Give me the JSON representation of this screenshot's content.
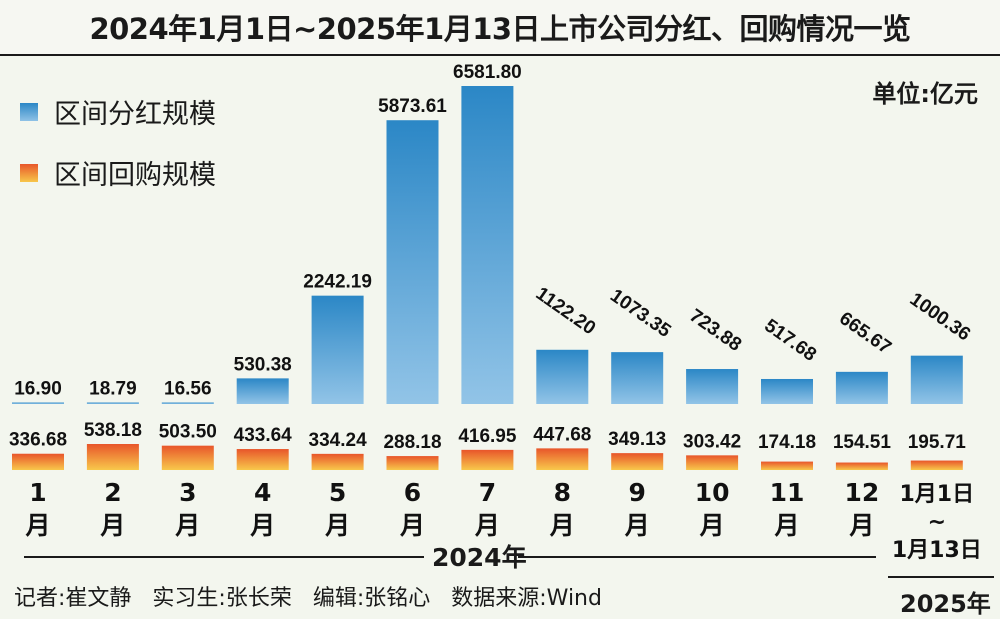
{
  "title": "2024年1月1日~2025年1月13日上市公司分红、回购情况一览",
  "unit_label": "单位:亿元",
  "legend": [
    {
      "label": "区间分红规模",
      "color": "#2b87c6"
    },
    {
      "label": "区间回购规模",
      "color": "#f08a2e"
    }
  ],
  "year_2024": "2024年",
  "year_2025": "2025年",
  "footer": {
    "reporter": "记者:崔文静",
    "intern": "实习生:张长荣",
    "editor": "编辑:张铭心",
    "source": "数据来源:Wind"
  },
  "chart_data": {
    "type": "bar",
    "title": "2024年1月1日~2025年1月13日上市公司分红、回购情况一览",
    "unit": "单位:亿元",
    "categories": [
      "1月",
      "2月",
      "3月",
      "4月",
      "5月",
      "6月",
      "7月",
      "8月",
      "9月",
      "10月",
      "11月",
      "12月",
      "1月1日~1月13日"
    ],
    "category_labels": [
      [
        "1",
        "月"
      ],
      [
        "2",
        "月"
      ],
      [
        "3",
        "月"
      ],
      [
        "4",
        "月"
      ],
      [
        "5",
        "月"
      ],
      [
        "6",
        "月"
      ],
      [
        "7",
        "月"
      ],
      [
        "8",
        "月"
      ],
      [
        "9",
        "月"
      ],
      [
        "10",
        "月"
      ],
      [
        "11",
        "月"
      ],
      [
        "12",
        "月"
      ],
      [
        "1月1日",
        "~",
        "1月13日"
      ]
    ],
    "series": [
      {
        "name": "区间分红规模",
        "values": [
          16.9,
          18.79,
          16.56,
          530.38,
          2242.19,
          5873.61,
          6581.8,
          1122.2,
          1073.35,
          723.88,
          517.68,
          665.67,
          1000.36
        ],
        "labels": [
          "16.90",
          "18.79",
          "16.56",
          "530.38",
          "2242.19",
          "5873.61",
          "6581.80",
          "1122.20",
          "1073.35",
          "723.88",
          "517.68",
          "665.67",
          "1000.36"
        ]
      },
      {
        "name": "区间回购规模",
        "values": [
          336.68,
          538.18,
          503.5,
          433.64,
          334.24,
          288.18,
          416.95,
          447.68,
          349.13,
          303.42,
          174.18,
          154.51,
          195.71
        ],
        "labels": [
          "336.68",
          "538.18",
          "503.50",
          "433.64",
          "334.24",
          "288.18",
          "416.95",
          "447.68",
          "349.13",
          "303.42",
          "174.18",
          "154.51",
          "195.71"
        ]
      }
    ],
    "groups": [
      {
        "label": "2024年",
        "categories": [
          "1月",
          "2月",
          "3月",
          "4月",
          "5月",
          "6月",
          "7月",
          "8月",
          "9月",
          "10月",
          "11月",
          "12月"
        ]
      },
      {
        "label": "2025年",
        "categories": [
          "1月1日~1月13日"
        ]
      }
    ],
    "grid": false,
    "legend_position": "top-left"
  }
}
